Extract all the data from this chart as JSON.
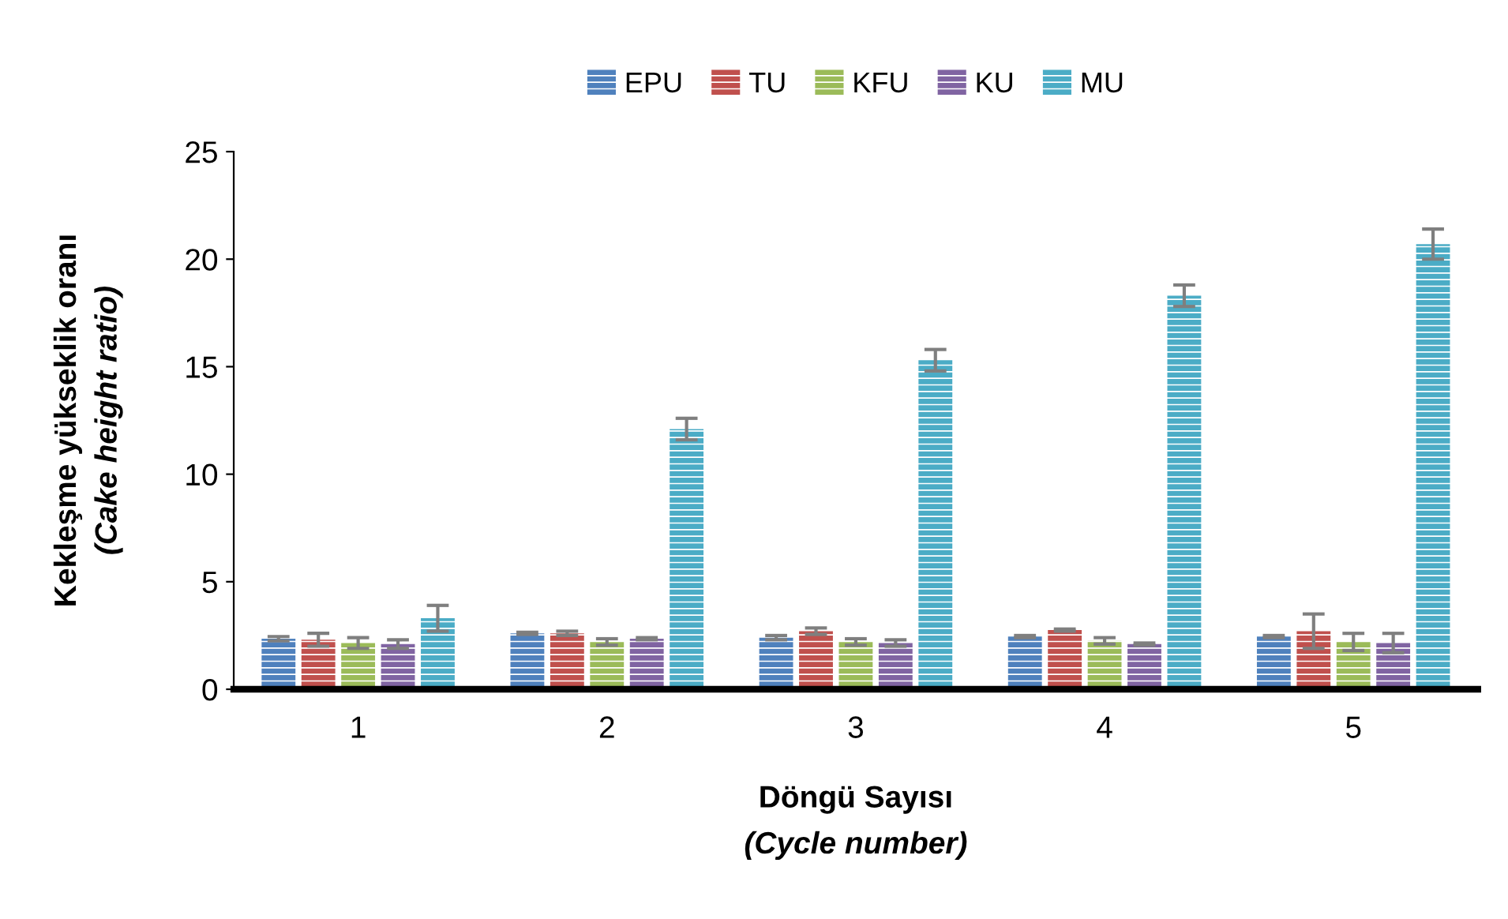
{
  "chart_data": {
    "type": "bar",
    "xlabel": "Döngü Sayısı\n(Cycle number)",
    "ylabel": "Kekleşme yükseklik oranı\n(Cake height ratio)",
    "categories": [
      "1",
      "2",
      "3",
      "4",
      "5"
    ],
    "series": [
      {
        "name": "EPU",
        "color": "#4f81bd",
        "values": [
          2.35,
          2.6,
          2.4,
          2.45,
          2.45
        ],
        "errors": [
          0.1,
          0.05,
          0.1,
          0.05,
          0.05
        ]
      },
      {
        "name": "TU",
        "color": "#c0504d",
        "values": [
          2.3,
          2.6,
          2.7,
          2.75,
          2.7
        ],
        "errors": [
          0.3,
          0.1,
          0.15,
          0.05,
          0.8
        ]
      },
      {
        "name": "KFU",
        "color": "#9bbb59",
        "values": [
          2.15,
          2.2,
          2.2,
          2.25,
          2.2
        ],
        "errors": [
          0.25,
          0.15,
          0.15,
          0.15,
          0.4
        ]
      },
      {
        "name": "KU",
        "color": "#8064a2",
        "values": [
          2.1,
          2.35,
          2.15,
          2.1,
          2.15
        ],
        "errors": [
          0.2,
          0.05,
          0.15,
          0.05,
          0.45
        ]
      },
      {
        "name": "MU",
        "color": "#4bacc6",
        "values": [
          3.3,
          12.1,
          15.3,
          18.3,
          20.7
        ],
        "errors": [
          0.6,
          0.5,
          0.5,
          0.5,
          0.7
        ]
      }
    ],
    "ylim": [
      0,
      25
    ],
    "yticks": [
      0,
      5,
      10,
      15,
      20,
      25
    ],
    "grid": false,
    "legend": "top"
  }
}
